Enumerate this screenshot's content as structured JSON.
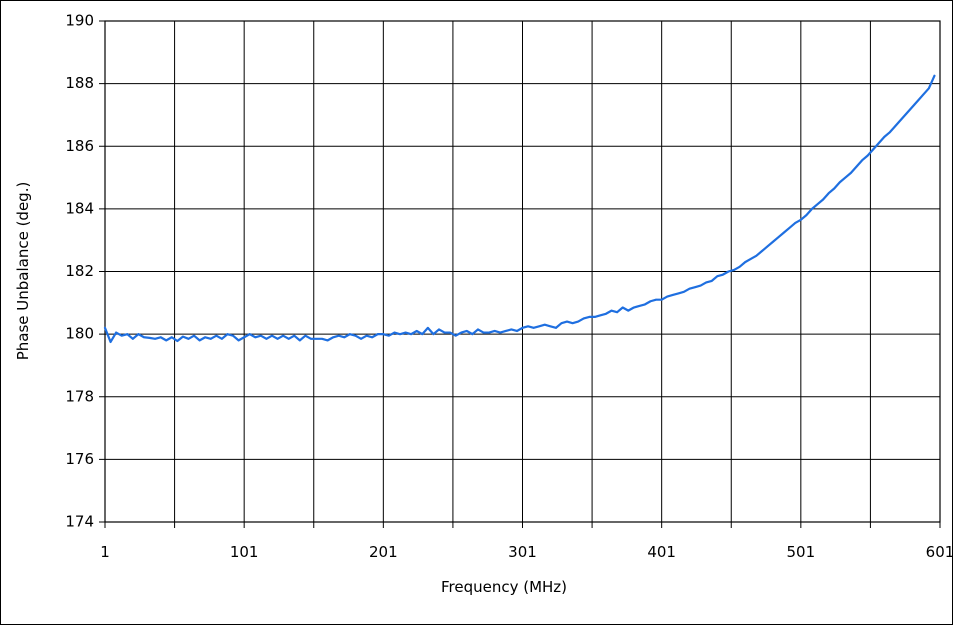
{
  "chart_data": {
    "type": "line",
    "title": "",
    "xlabel": "Frequency (MHz)",
    "ylabel": "Phase Unbalance (deg.)",
    "xlim": [
      1,
      601
    ],
    "ylim": [
      174,
      190
    ],
    "x_ticks": [
      "1",
      "101",
      "201",
      "301",
      "401",
      "501",
      "601"
    ],
    "y_ticks": [
      "190",
      "188",
      "186",
      "184",
      "182",
      "180",
      "178",
      "176",
      "174"
    ],
    "grid": true,
    "legend": "none",
    "series": [
      {
        "color": "#1f6fe0",
        "points": [
          [
            1,
            180.2
          ],
          [
            5,
            179.75
          ],
          [
            9,
            180.05
          ],
          [
            13,
            179.95
          ],
          [
            17,
            180.0
          ],
          [
            21,
            179.85
          ],
          [
            25,
            180.0
          ],
          [
            29,
            179.9
          ],
          [
            33,
            179.88
          ],
          [
            37,
            179.85
          ],
          [
            41,
            179.9
          ],
          [
            45,
            179.8
          ],
          [
            49,
            179.9
          ],
          [
            53,
            179.78
          ],
          [
            57,
            179.92
          ],
          [
            61,
            179.85
          ],
          [
            65,
            179.95
          ],
          [
            69,
            179.8
          ],
          [
            73,
            179.9
          ],
          [
            77,
            179.85
          ],
          [
            81,
            179.95
          ],
          [
            85,
            179.85
          ],
          [
            89,
            180.0
          ],
          [
            93,
            179.95
          ],
          [
            97,
            179.8
          ],
          [
            101,
            179.9
          ],
          [
            105,
            180.0
          ],
          [
            109,
            179.9
          ],
          [
            113,
            179.95
          ],
          [
            117,
            179.85
          ],
          [
            121,
            179.95
          ],
          [
            125,
            179.85
          ],
          [
            129,
            179.95
          ],
          [
            133,
            179.85
          ],
          [
            137,
            179.95
          ],
          [
            141,
            179.8
          ],
          [
            145,
            179.95
          ],
          [
            149,
            179.85
          ],
          [
            153,
            179.85
          ],
          [
            157,
            179.85
          ],
          [
            161,
            179.8
          ],
          [
            165,
            179.9
          ],
          [
            169,
            179.95
          ],
          [
            173,
            179.9
          ],
          [
            177,
            180.0
          ],
          [
            181,
            179.95
          ],
          [
            185,
            179.85
          ],
          [
            189,
            179.95
          ],
          [
            193,
            179.9
          ],
          [
            197,
            180.0
          ],
          [
            201,
            180.0
          ],
          [
            205,
            179.95
          ],
          [
            209,
            180.05
          ],
          [
            213,
            180.0
          ],
          [
            217,
            180.05
          ],
          [
            221,
            180.0
          ],
          [
            225,
            180.1
          ],
          [
            229,
            180.0
          ],
          [
            233,
            180.2
          ],
          [
            237,
            180.0
          ],
          [
            241,
            180.15
          ],
          [
            245,
            180.05
          ],
          [
            249,
            180.05
          ],
          [
            253,
            179.95
          ],
          [
            257,
            180.05
          ],
          [
            261,
            180.1
          ],
          [
            265,
            180.0
          ],
          [
            269,
            180.15
          ],
          [
            273,
            180.05
          ],
          [
            277,
            180.05
          ],
          [
            281,
            180.1
          ],
          [
            285,
            180.05
          ],
          [
            289,
            180.1
          ],
          [
            293,
            180.15
          ],
          [
            297,
            180.1
          ],
          [
            301,
            180.2
          ],
          [
            305,
            180.25
          ],
          [
            309,
            180.2
          ],
          [
            313,
            180.25
          ],
          [
            317,
            180.3
          ],
          [
            321,
            180.25
          ],
          [
            325,
            180.2
          ],
          [
            329,
            180.35
          ],
          [
            333,
            180.4
          ],
          [
            337,
            180.35
          ],
          [
            341,
            180.4
          ],
          [
            345,
            180.5
          ],
          [
            349,
            180.55
          ],
          [
            353,
            180.55
          ],
          [
            357,
            180.6
          ],
          [
            361,
            180.65
          ],
          [
            365,
            180.75
          ],
          [
            369,
            180.7
          ],
          [
            373,
            180.85
          ],
          [
            377,
            180.75
          ],
          [
            381,
            180.85
          ],
          [
            385,
            180.9
          ],
          [
            389,
            180.95
          ],
          [
            393,
            181.05
          ],
          [
            397,
            181.1
          ],
          [
            401,
            181.1
          ],
          [
            405,
            181.2
          ],
          [
            409,
            181.25
          ],
          [
            413,
            181.3
          ],
          [
            417,
            181.35
          ],
          [
            421,
            181.45
          ],
          [
            425,
            181.5
          ],
          [
            429,
            181.55
          ],
          [
            433,
            181.65
          ],
          [
            437,
            181.7
          ],
          [
            441,
            181.85
          ],
          [
            445,
            181.9
          ],
          [
            449,
            182.0
          ],
          [
            453,
            182.05
          ],
          [
            457,
            182.15
          ],
          [
            461,
            182.3
          ],
          [
            465,
            182.4
          ],
          [
            469,
            182.5
          ],
          [
            473,
            182.65
          ],
          [
            477,
            182.8
          ],
          [
            481,
            182.95
          ],
          [
            485,
            183.1
          ],
          [
            489,
            183.25
          ],
          [
            493,
            183.4
          ],
          [
            497,
            183.55
          ],
          [
            501,
            183.65
          ],
          [
            505,
            183.8
          ],
          [
            509,
            184.0
          ],
          [
            513,
            184.15
          ],
          [
            517,
            184.3
          ],
          [
            521,
            184.5
          ],
          [
            525,
            184.65
          ],
          [
            529,
            184.85
          ],
          [
            533,
            185.0
          ],
          [
            537,
            185.15
          ],
          [
            541,
            185.35
          ],
          [
            545,
            185.55
          ],
          [
            549,
            185.7
          ],
          [
            553,
            185.9
          ],
          [
            557,
            186.1
          ],
          [
            561,
            186.3
          ],
          [
            565,
            186.45
          ],
          [
            569,
            186.65
          ],
          [
            573,
            186.85
          ],
          [
            577,
            187.05
          ],
          [
            581,
            187.25
          ],
          [
            585,
            187.45
          ],
          [
            589,
            187.65
          ],
          [
            593,
            187.85
          ],
          [
            597,
            188.25
          ]
        ]
      }
    ]
  }
}
